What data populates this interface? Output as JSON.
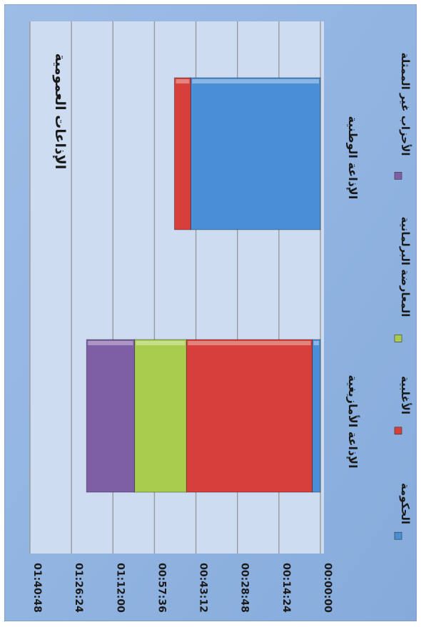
{
  "chart_data": {
    "type": "bar",
    "orientation": "rotated-stacked-horizontal",
    "title": "الإذاعات العمومية",
    "categories": [
      "الإذاعة الأمازيغية",
      "الإذاعة الوطنية"
    ],
    "series": [
      {
        "name": "الحكومة",
        "color": "#4a8fd6",
        "values_seconds": [
          170,
          2700
        ]
      },
      {
        "name": "الأغلبية",
        "color": "#d63f3a",
        "values_seconds": [
          2620,
          340
        ]
      },
      {
        "name": "المعارضة البرلمانية",
        "color": "#a9cc4f",
        "values_seconds": [
          1080,
          0
        ]
      },
      {
        "name": "الأحزاب غير الممثلة",
        "color": "#7e5fa5",
        "values_seconds": [
          1000,
          0
        ]
      }
    ],
    "axis": {
      "min_seconds": 0,
      "max_seconds": 6048,
      "tick_labels": [
        "00:00:00",
        "00:14:24",
        "00:28:48",
        "00:43:12",
        "00:57:36",
        "01:12:00",
        "01:26:24",
        "01:40:48"
      ]
    },
    "grid": true,
    "legend_position": "bottom",
    "colors": {
      "outer_background": "#8fb3e0",
      "plot_background": "#cddcf1",
      "gridline": "#9a9a9a"
    }
  }
}
